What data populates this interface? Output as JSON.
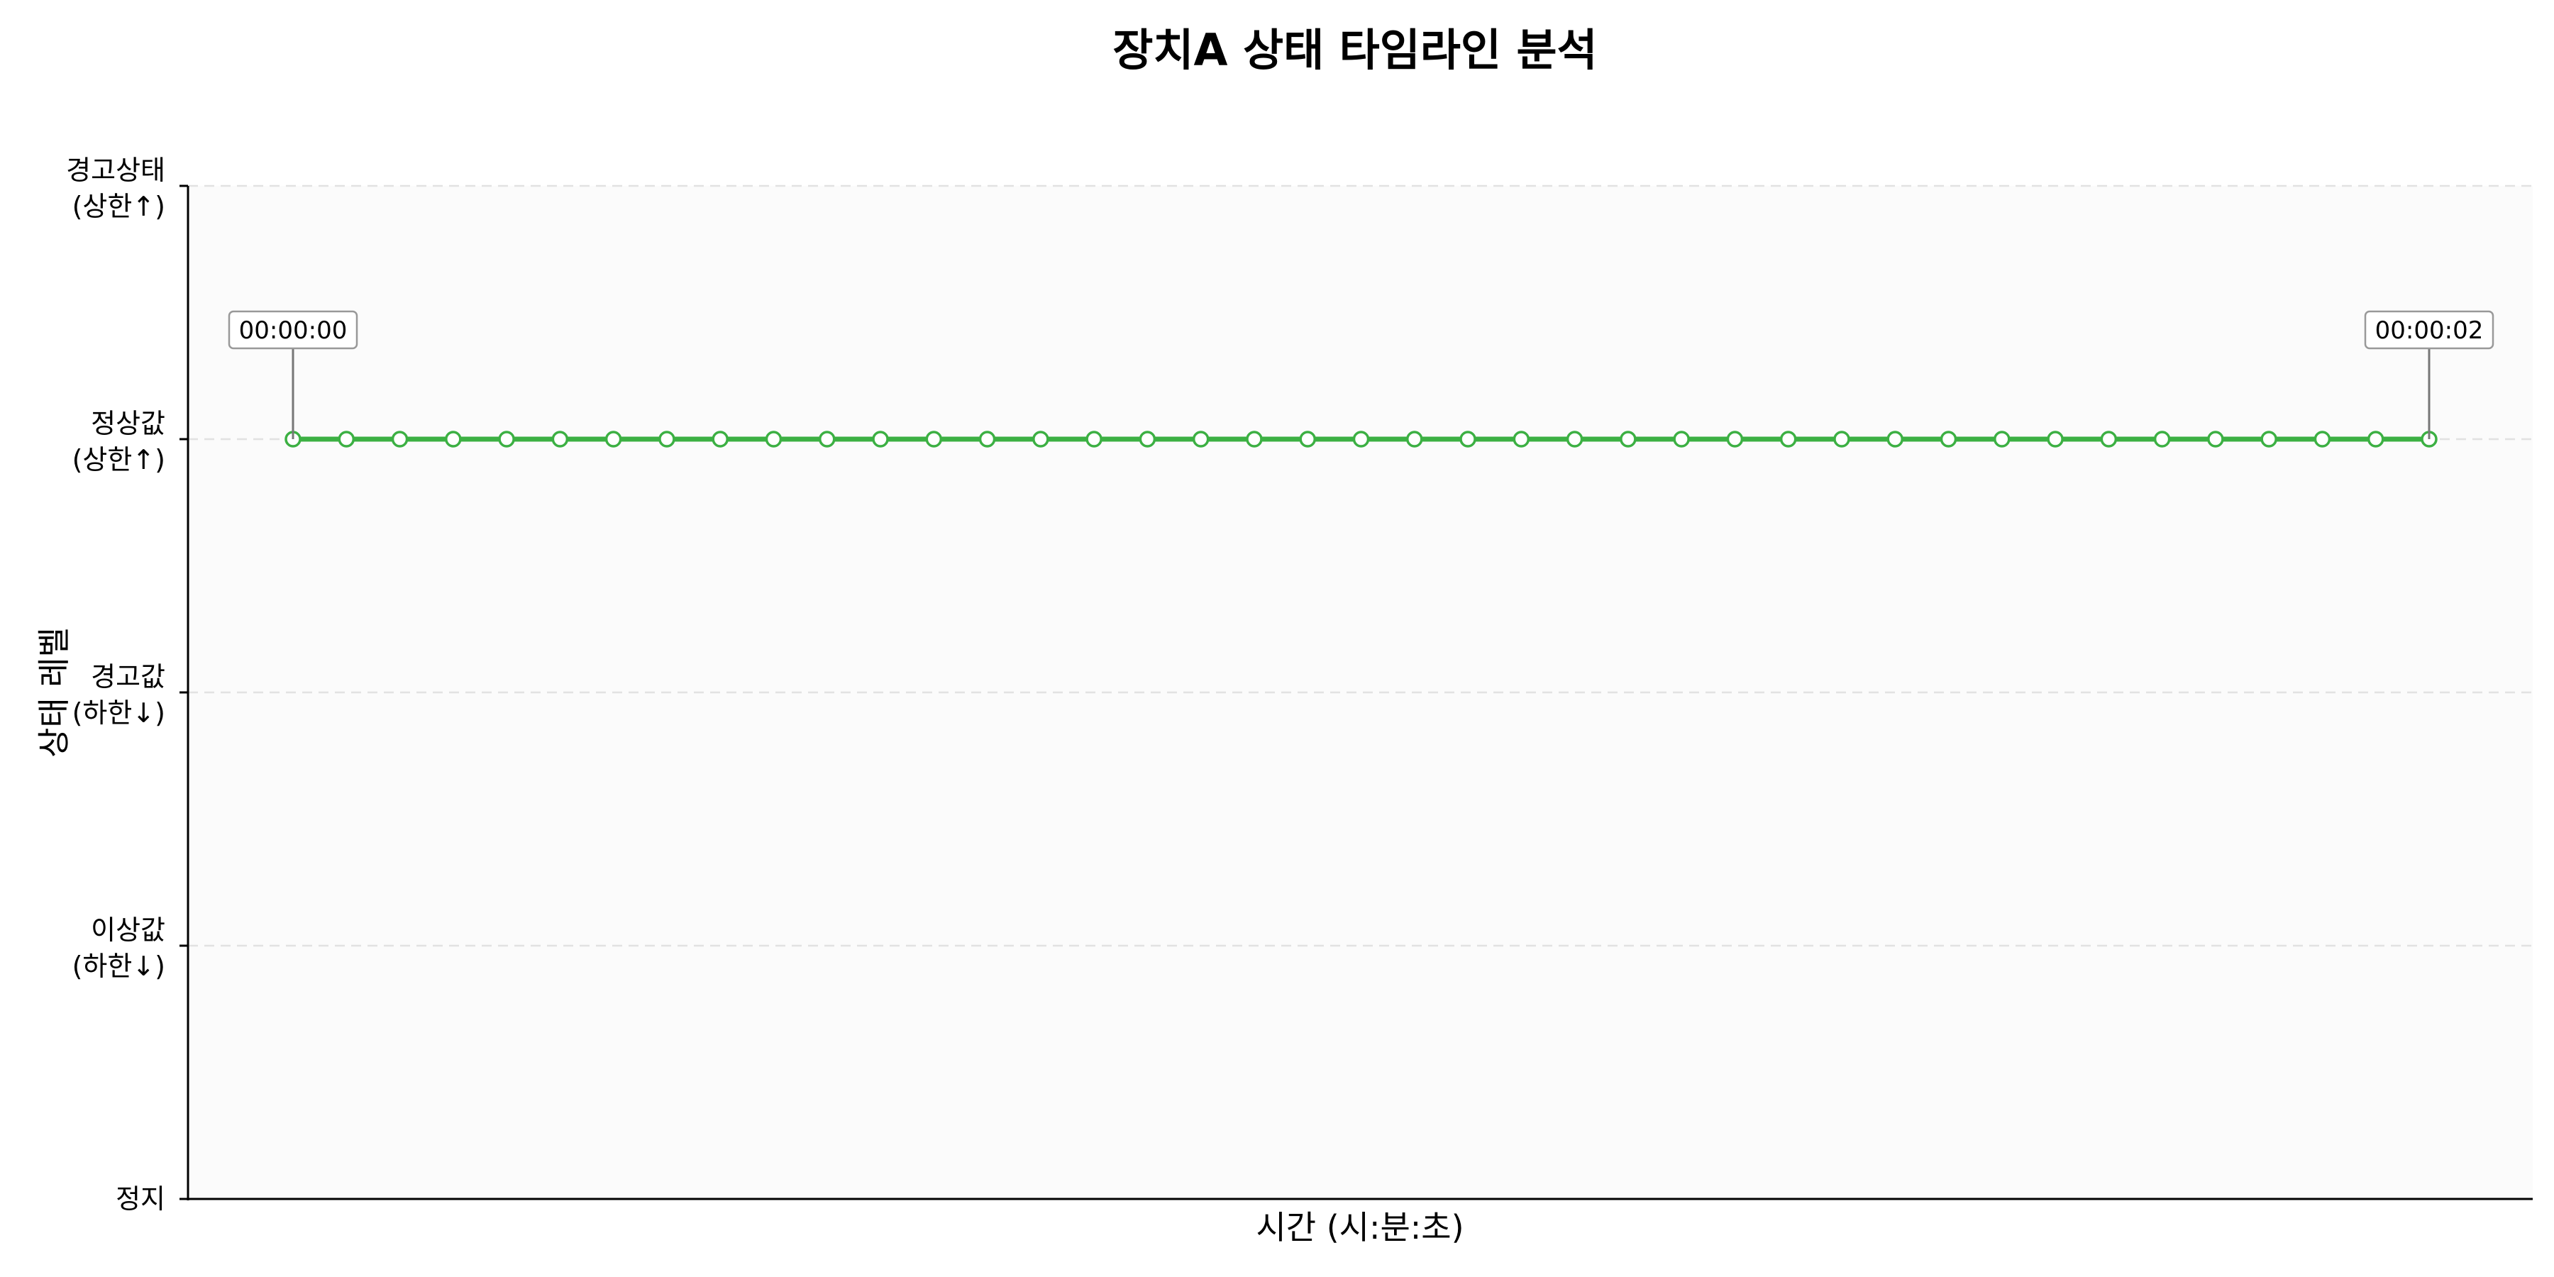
{
  "chart_data": {
    "type": "line",
    "title": "장치A 상태 타임라인 분석",
    "xlabel": "시간 (시:분:초)",
    "ylabel": "상태 레벨",
    "y_categories": [
      {
        "level": 0,
        "label_line1": "정지",
        "label_line2": ""
      },
      {
        "level": 1,
        "label_line1": "이상값",
        "label_line2": "(하한↓)"
      },
      {
        "level": 2,
        "label_line1": "경고값",
        "label_line2": "(하한↓)"
      },
      {
        "level": 3,
        "label_line1": "정상값",
        "label_line2": "(상한↑)"
      },
      {
        "level": 4,
        "label_line1": "경고상태",
        "label_line2": "(상한↑)"
      }
    ],
    "ylim": [
      0,
      4
    ],
    "grid": "horizontal dashed",
    "series": [
      {
        "color": "#3cb043",
        "x_start": "00:00:00",
        "x_end": "00:00:02",
        "point_count": 41,
        "values": [
          3,
          3,
          3,
          3,
          3,
          3,
          3,
          3,
          3,
          3,
          3,
          3,
          3,
          3,
          3,
          3,
          3,
          3,
          3,
          3,
          3,
          3,
          3,
          3,
          3,
          3,
          3,
          3,
          3,
          3,
          3,
          3,
          3,
          3,
          3,
          3,
          3,
          3,
          3,
          3,
          3
        ]
      }
    ],
    "annotations": [
      {
        "text": "00:00:00",
        "point_index": 0
      },
      {
        "text": "00:00:02",
        "point_index": 40
      }
    ],
    "colors": {
      "line": "#3cb043",
      "marker_fill": "#ffffff",
      "plot_background": "#fbfbfb",
      "grid": "#e2e2e2",
      "annotation_border": "#999999"
    }
  }
}
